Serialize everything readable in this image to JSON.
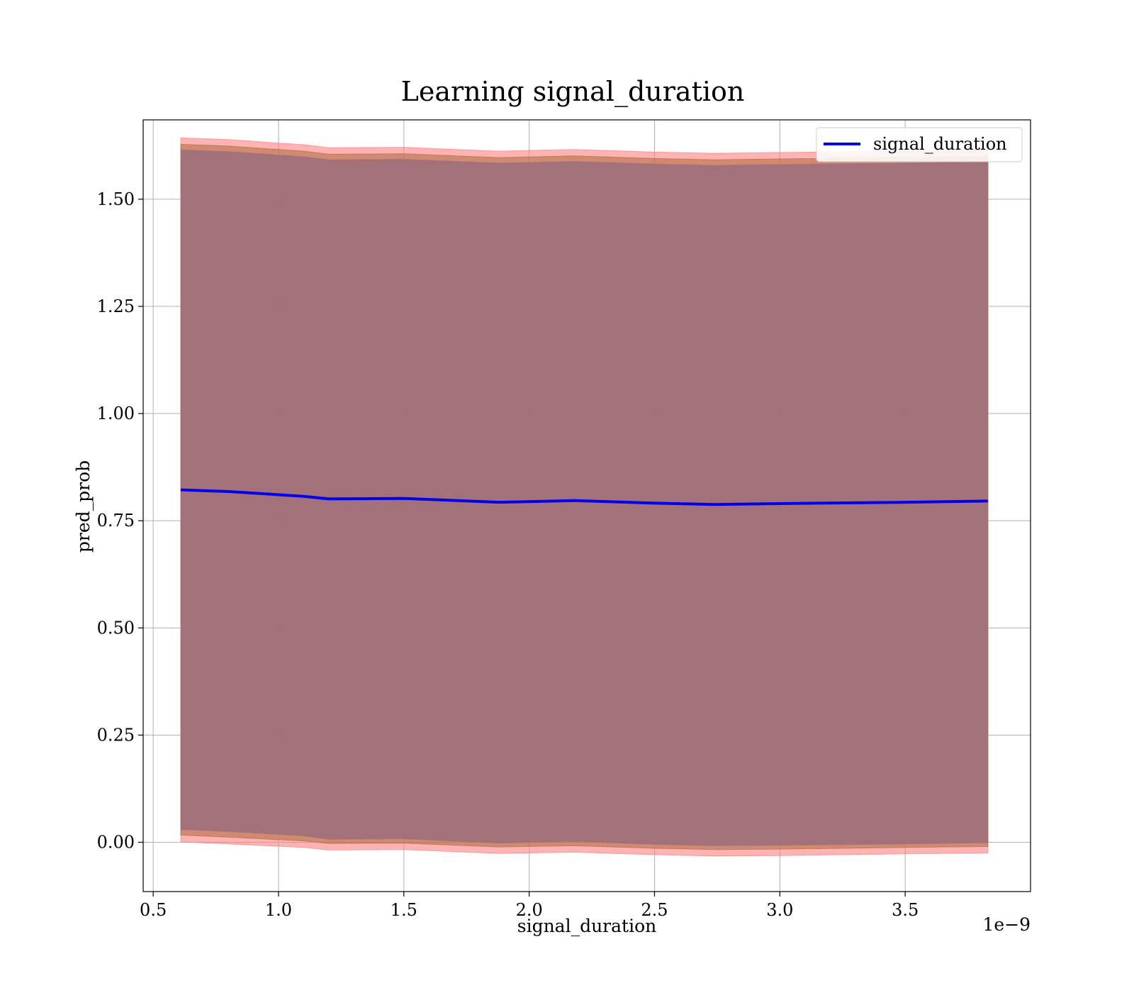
{
  "chart_data": {
    "type": "line",
    "title": "Learning signal_duration",
    "xlabel": "signal_duration",
    "ylabel": "pred_prob",
    "x_offset_label": "1e−9",
    "xlim": [
      0.46,
      4.0
    ],
    "ylim": [
      -0.115,
      1.685
    ],
    "x_ticks": [
      0.5,
      1.0,
      1.5,
      2.0,
      2.5,
      3.0,
      3.5
    ],
    "x_tick_labels": [
      "0.5",
      "1.0",
      "1.5",
      "2.0",
      "2.5",
      "3.0",
      "3.5"
    ],
    "y_ticks": [
      0.0,
      0.25,
      0.5,
      0.75,
      1.0,
      1.25,
      1.5
    ],
    "y_tick_labels": [
      "0.00",
      "0.25",
      "0.50",
      "0.75",
      "1.00",
      "1.25",
      "1.50"
    ],
    "grid": true,
    "legend": {
      "position": "top-right",
      "entries": [
        "signal_duration"
      ]
    },
    "x": [
      0.61,
      0.8,
      1.1,
      1.2,
      1.5,
      1.88,
      2.18,
      2.5,
      2.74,
      3.0,
      3.5,
      3.83
    ],
    "series": [
      {
        "name": "signal_duration",
        "color": "#0000ee",
        "values": [
          0.822,
          0.818,
          0.807,
          0.801,
          0.802,
          0.793,
          0.797,
          0.791,
          0.788,
          0.79,
          0.793,
          0.796
        ],
        "band_outer": {
          "color": "#ff8080",
          "lower": [
            0.001,
            -0.004,
            -0.012,
            -0.018,
            -0.017,
            -0.026,
            -0.023,
            -0.029,
            -0.032,
            -0.031,
            -0.027,
            -0.025
          ],
          "upper": [
            1.643,
            1.639,
            1.627,
            1.62,
            1.621,
            1.612,
            1.616,
            1.61,
            1.607,
            1.609,
            1.612,
            1.615
          ]
        },
        "band_middle": {
          "color": "#b26e44",
          "lower": [
            0.017,
            0.012,
            0.003,
            -0.003,
            -0.002,
            -0.011,
            -0.008,
            -0.014,
            -0.017,
            -0.016,
            -0.012,
            -0.01
          ],
          "upper": [
            1.628,
            1.624,
            1.612,
            1.605,
            1.606,
            1.597,
            1.601,
            1.595,
            1.592,
            1.594,
            1.597,
            1.6
          ]
        },
        "band_inner": {
          "color": "#a0707a",
          "lower": [
            0.03,
            0.025,
            0.015,
            0.007,
            0.008,
            -0.002,
            0.002,
            -0.005,
            -0.008,
            -0.007,
            -0.004,
            -0.001
          ],
          "upper": [
            1.615,
            1.611,
            1.599,
            1.592,
            1.593,
            1.584,
            1.588,
            1.582,
            1.579,
            1.581,
            1.584,
            1.587
          ]
        }
      }
    ]
  }
}
